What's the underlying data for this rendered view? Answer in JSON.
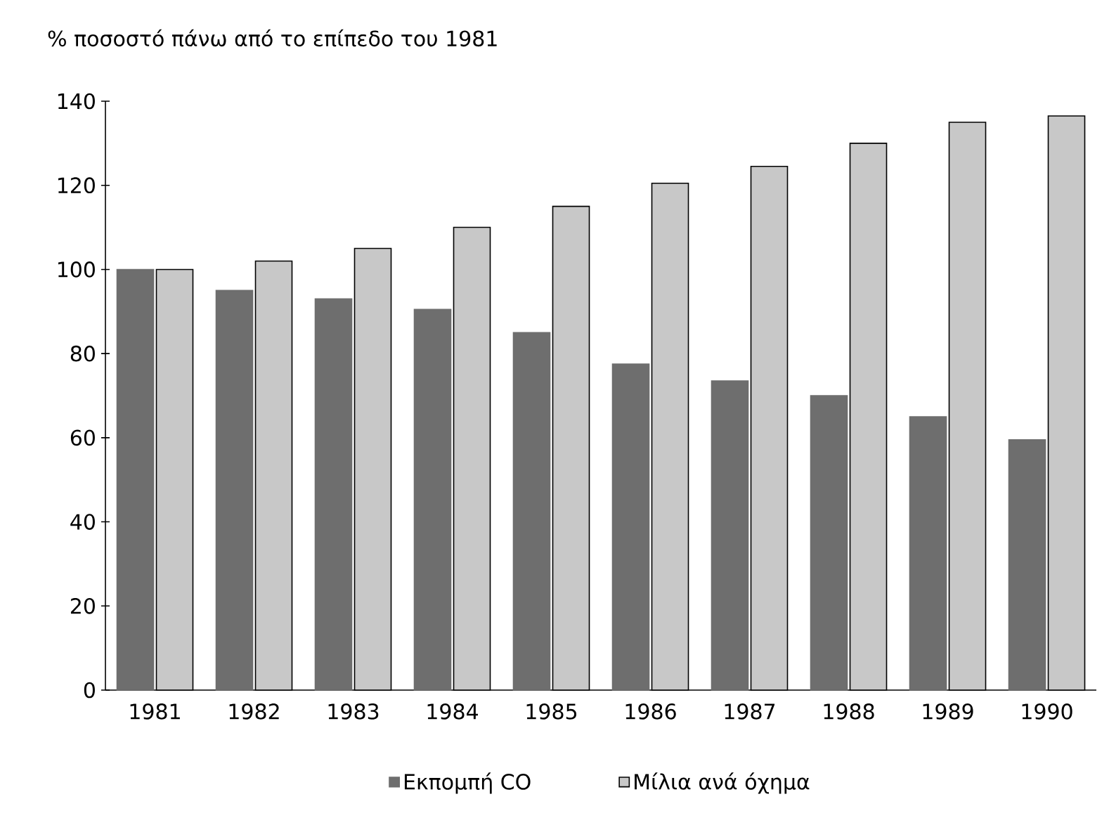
{
  "chart_data": {
    "type": "bar",
    "title": "% ποσοστό πάνω από το επίπεδο του 1981",
    "categories": [
      "1981",
      "1982",
      "1983",
      "1984",
      "1985",
      "1986",
      "1987",
      "1988",
      "1989",
      "1990"
    ],
    "series": [
      {
        "name": "Εκπομπή  CO",
        "color": "#6e6e6e",
        "values": [
          100,
          95,
          93,
          90.5,
          85,
          77.5,
          73.5,
          70,
          65,
          59.5
        ]
      },
      {
        "name": "Μίλια ανά όχημα",
        "color": "#c8c8c8",
        "values": [
          100,
          102,
          105,
          110,
          115,
          120.5,
          124.5,
          130,
          135,
          136.5
        ]
      }
    ],
    "ylim": [
      0,
      140
    ],
    "yticks": [
      0,
      20,
      40,
      60,
      80,
      100,
      120,
      140
    ],
    "grid": false,
    "legend": "bottom"
  }
}
